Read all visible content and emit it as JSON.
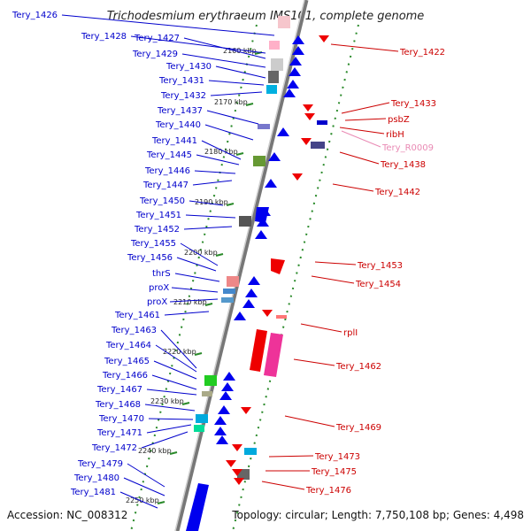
{
  "title": "Trichodesmium erythraeum IMS101, complete genome",
  "footer": {
    "accession": "Accession: NC_008312",
    "topology": "Topology: circular; Length: 7,750,108 bp; Genes: 4,498"
  },
  "colors": {
    "left_label": "#0000cc",
    "right_label": "#cc0000",
    "rna_label": "#e98ab4",
    "backbone": "#999999",
    "tick": "#2a8a2a"
  },
  "ticks": [
    "2160 kbp",
    "2170 kbp",
    "2180 kbp",
    "2190 kbp",
    "2200 kbp",
    "2210 kbp",
    "2220 kbp",
    "2230 kbp",
    "2240 kbp",
    "2250 kbp"
  ],
  "left_genes": [
    "Tery_1426",
    "Tery_1428",
    "Tery_1427",
    "Tery_1429",
    "Tery_1430",
    "Tery_1431",
    "Tery_1432",
    "Tery_1437",
    "Tery_1440",
    "Tery_1441",
    "Tery_1445",
    "Tery_1446",
    "Tery_1447",
    "Tery_1450",
    "Tery_1451",
    "Tery_1452",
    "Tery_1455",
    "Tery_1456",
    "thrS",
    "proX",
    "proX",
    "Tery_1461",
    "Tery_1463",
    "Tery_1464",
    "Tery_1465",
    "Tery_1466",
    "Tery_1467",
    "Tery_1468",
    "Tery_1470",
    "Tery_1471",
    "Tery_1472",
    "Tery_1479",
    "Tery_1480",
    "Tery_1481"
  ],
  "right_genes": [
    "Tery_1422",
    "Tery_1433",
    "psbZ",
    "ribH",
    "Tery_R0009",
    "Tery_1438",
    "Tery_1442",
    "Tery_1453",
    "Tery_1454",
    "rplI",
    "Tery_1462",
    "Tery_1469",
    "Tery_1473",
    "Tery_1475",
    "Tery_1476"
  ]
}
